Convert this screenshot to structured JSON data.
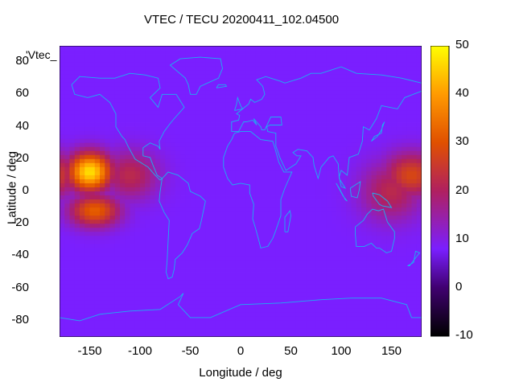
{
  "title": "VTEC / TECU 20200411_102.04500",
  "xlabel": "Longitude / deg",
  "ylabel": "Latitude / deg",
  "key_label": "'Vtec_",
  "x_ticks": [
    "-150",
    "-100",
    "-50",
    "0",
    "50",
    "100",
    "150"
  ],
  "y_ticks": [
    "80",
    "60",
    "40",
    "20",
    "0",
    "-20",
    "-40",
    "-60",
    "-80"
  ],
  "colorbar_ticks": [
    "50",
    "40",
    "30",
    "20",
    "10",
    "0",
    "-10"
  ],
  "colors": {
    "background": "#7a1fff",
    "coastline": "#1cb0f0",
    "palette": [
      "#000000",
      "#400070",
      "#7a1fff",
      "#b02060",
      "#e05000",
      "#ff9a00",
      "#ffff00"
    ]
  },
  "chart_data": {
    "type": "heatmap",
    "title": "VTEC / TECU 20200411_102.04500",
    "xlabel": "Longitude / deg",
    "ylabel": "Latitude / deg",
    "xlim": [
      -180,
      180
    ],
    "ylim": [
      -90,
      90
    ],
    "colorbar": {
      "min": -10,
      "max": 50,
      "ticks": [
        -10,
        0,
        10,
        20,
        30,
        40,
        50
      ]
    },
    "background_value": 8,
    "enhancements": [
      {
        "lon": -150,
        "lat": 12,
        "peak": 47,
        "lon_width": 22,
        "lat_width": 12
      },
      {
        "lon": -145,
        "lat": -12,
        "peak": 32,
        "lon_width": 25,
        "lat_width": 10
      },
      {
        "lon": -110,
        "lat": 10,
        "peak": 22,
        "lon_width": 28,
        "lat_width": 15
      },
      {
        "lon": 170,
        "lat": 10,
        "peak": 28,
        "lon_width": 28,
        "lat_width": 14
      },
      {
        "lon": 150,
        "lat": 0,
        "peak": 22,
        "lon_width": 30,
        "lat_width": 18
      }
    ]
  }
}
